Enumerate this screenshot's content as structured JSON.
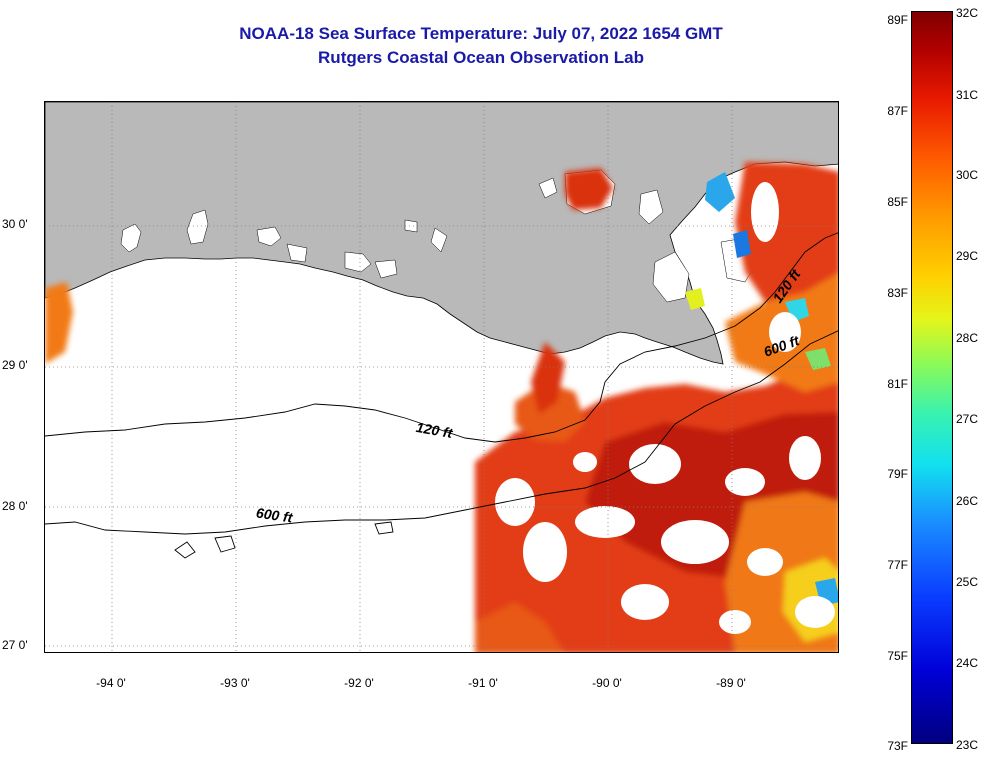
{
  "title": {
    "line1": "NOAA-18 Sea Surface Temperature:  July 07, 2022 1654 GMT",
    "line2": "Rutgers Coastal Ocean Observation Lab"
  },
  "map": {
    "lat_labels": [
      "30 0'",
      "29 0'",
      "28 0'",
      "27 0'"
    ],
    "lon_labels": [
      "-94 0'",
      "-93 0'",
      "-92 0'",
      "-91 0'",
      "-90 0'",
      "-89 0'"
    ],
    "contour_labels": [
      "120 ft",
      "600 ft",
      "120 ft",
      "600 ft"
    ],
    "colors": {
      "land": "#b9b9b9",
      "no_data": "#ffffff",
      "warm": "#e03a10",
      "hot": "#b81808",
      "orange": "#f57a15",
      "yellow": "#f2cf1a",
      "cool": "#1fa0e6"
    }
  },
  "colorbar": {
    "fahrenheit": [
      "89F",
      "87F",
      "85F",
      "83F",
      "81F",
      "79F",
      "77F",
      "75F",
      "73F"
    ],
    "celsius": [
      "32C",
      "31C",
      "30C",
      "29C",
      "28C",
      "27C",
      "26C",
      "25C",
      "24C",
      "23C"
    ]
  }
}
